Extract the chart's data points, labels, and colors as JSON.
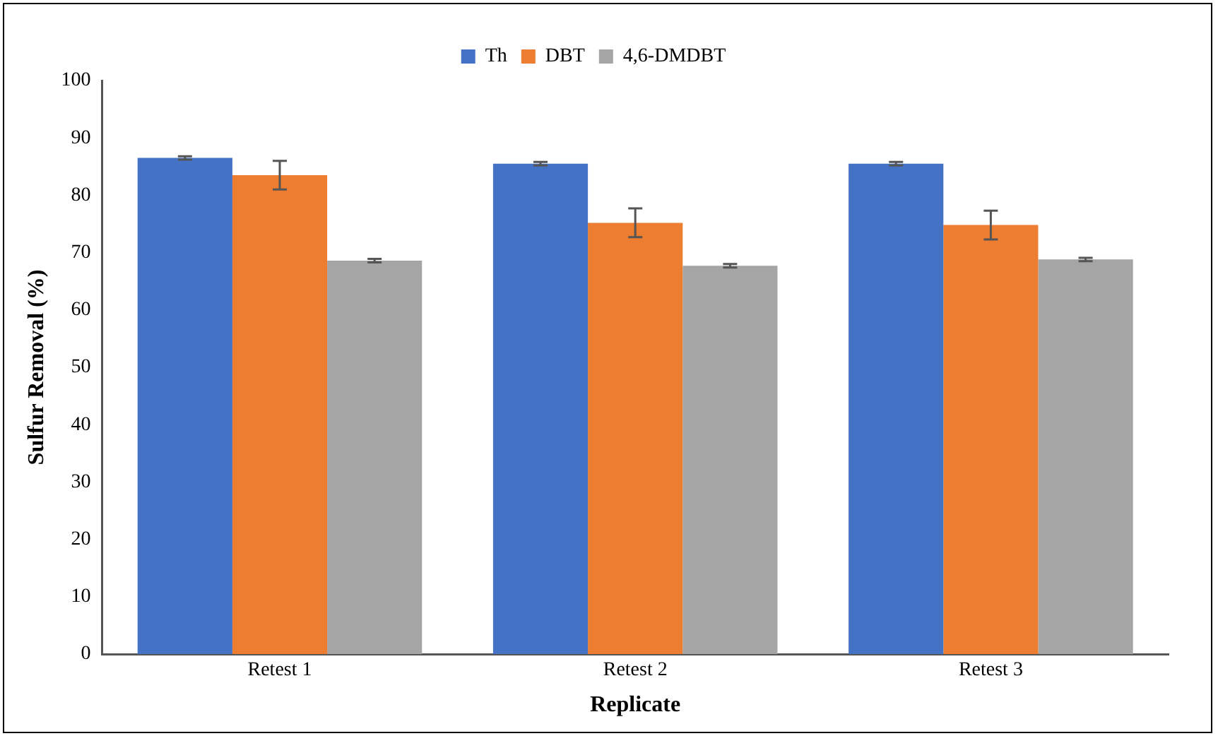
{
  "chart_data": {
    "type": "bar",
    "xlabel": "Replicate",
    "ylabel": "Sulfur Removal (%)",
    "categories": [
      "Retest 1",
      "Retest 2",
      "Retest 3"
    ],
    "series": [
      {
        "name": "Th",
        "color": "#4472c4",
        "values": [
          86.5,
          85.5,
          85.5
        ],
        "errors": [
          0.3,
          0.3,
          0.3
        ]
      },
      {
        "name": "DBT",
        "color": "#ed7d31",
        "values": [
          83.5,
          75.2,
          74.8
        ],
        "errors": [
          2.5,
          2.5,
          2.5
        ]
      },
      {
        "name": "4,6-DMDBT",
        "color": "#a5a5a5",
        "values": [
          68.6,
          67.7,
          68.8
        ],
        "errors": [
          0.3,
          0.3,
          0.3
        ]
      }
    ],
    "ylim": [
      0,
      100
    ],
    "yticks": [
      0,
      10,
      20,
      30,
      40,
      50,
      60,
      70,
      80,
      90,
      100
    ],
    "grid": false,
    "legend": "top"
  }
}
